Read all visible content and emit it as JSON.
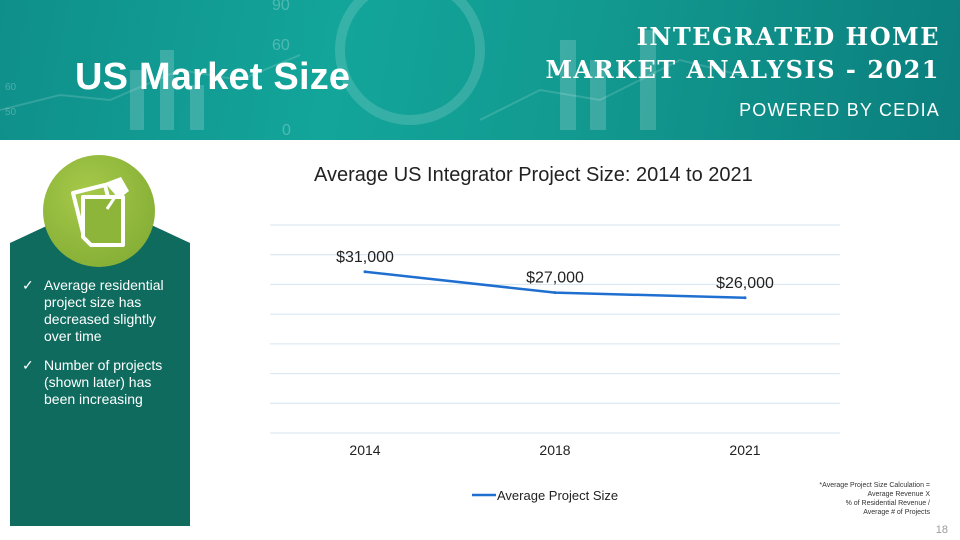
{
  "header": {
    "title": "US Market Size",
    "brand_line1": "INTEGRATED HOME",
    "brand_line2": "MARKET ANALYSIS - 2021",
    "powered_by": "POWERED BY CEDIA",
    "bg_numbers": [
      "90",
      "60",
      "0",
      "60",
      "50"
    ]
  },
  "sidebar": {
    "icon": "pinned-note-icon",
    "bullets": [
      "Average residential project size has decreased slightly over time",
      "Number of projects (shown later) has been increasing"
    ]
  },
  "chart_data": {
    "type": "line",
    "title": "Average US Integrator Project Size: 2014 to 2021",
    "categories": [
      "2014",
      "2018",
      "2021"
    ],
    "series": [
      {
        "name": "Average Project Size",
        "values": [
          31000,
          27000,
          26000
        ],
        "labels": [
          "$31,000",
          "$27,000",
          "$26,000"
        ],
        "color": "#1f6fd0"
      }
    ],
    "ylim": [
      0,
      40000
    ],
    "grid": true,
    "legend": "bottom"
  },
  "footnote": [
    "*Average Project Size Calculation =",
    "Average Revenue X",
    "% of Residential Revenue /",
    "Average # of Projects"
  ],
  "page_number": "18",
  "colors": {
    "header": "#13a59a",
    "sidebar": "#0e6b5e",
    "icon_green": "#8db53a",
    "line": "#1f6fd0",
    "grid": "#d6e4f0"
  }
}
